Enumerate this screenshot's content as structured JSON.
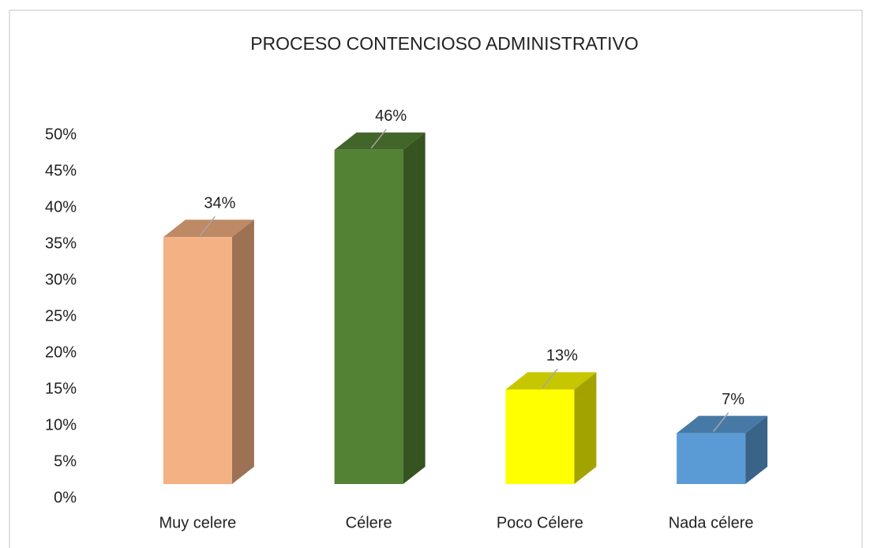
{
  "chart_data": {
    "type": "bar3d",
    "title": "PROCESO CONTENCIOSO ADMINISTRATIVO",
    "categories": [
      "Muy celere",
      "Célere",
      "Poco Célere",
      "Nada célere"
    ],
    "values": [
      34,
      46,
      13,
      7
    ],
    "value_labels": [
      "34%",
      "46%",
      "13%",
      "7%"
    ],
    "colors": [
      "#f4b183",
      "#548235",
      "#ffff00",
      "#5b9bd5"
    ],
    "ylim": [
      0,
      50
    ],
    "yticks": [
      {
        "value": 0,
        "label": "0%"
      },
      {
        "value": 5,
        "label": "5%"
      },
      {
        "value": 10,
        "label": "10%"
      },
      {
        "value": 15,
        "label": "15%"
      },
      {
        "value": 20,
        "label": "20%"
      },
      {
        "value": 25,
        "label": "25%"
      },
      {
        "value": 30,
        "label": "30%"
      },
      {
        "value": 35,
        "label": "35%"
      },
      {
        "value": 40,
        "label": "40%"
      },
      {
        "value": 45,
        "label": "45%"
      },
      {
        "value": 50,
        "label": "50%"
      }
    ],
    "grid": false
  }
}
